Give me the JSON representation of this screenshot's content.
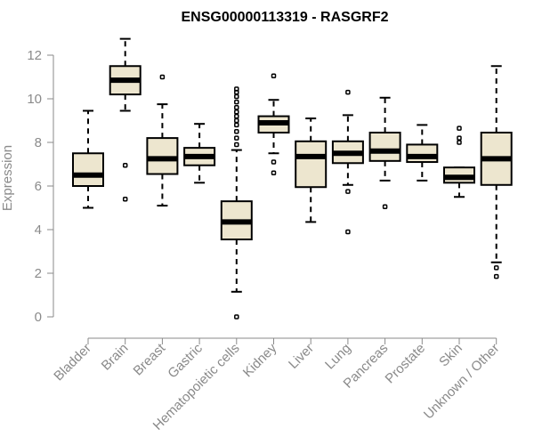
{
  "chart_data": {
    "type": "boxplot",
    "title": "ENSG00000113319 - RASGRF2",
    "xlabel": "",
    "ylabel": "Expression",
    "ylim": [
      0,
      12
    ],
    "yticks": [
      0,
      2,
      4,
      6,
      8,
      10,
      12
    ],
    "categories": [
      "Bladder",
      "Brain",
      "Breast",
      "Gastric",
      "Hematopoietic cells",
      "Kidney",
      "Liver",
      "Lung",
      "Pancreas",
      "Prostate",
      "Skin",
      "Unknown / Other"
    ],
    "boxes": [
      {
        "name": "Bladder",
        "whisker_low": 5.0,
        "q1": 6.0,
        "median": 6.5,
        "q3": 7.5,
        "whisker_high": 9.45,
        "outliers": []
      },
      {
        "name": "Brain",
        "whisker_low": 9.45,
        "q1": 10.2,
        "median": 10.85,
        "q3": 11.5,
        "whisker_high": 12.75,
        "outliers": [
          6.95,
          5.4
        ]
      },
      {
        "name": "Breast",
        "whisker_low": 5.1,
        "q1": 6.55,
        "median": 7.25,
        "q3": 8.2,
        "whisker_high": 9.75,
        "outliers": [
          11.0
        ]
      },
      {
        "name": "Gastric",
        "whisker_low": 6.15,
        "q1": 6.95,
        "median": 7.35,
        "q3": 7.75,
        "whisker_high": 8.85,
        "outliers": []
      },
      {
        "name": "Hematopoietic cells",
        "whisker_low": 1.15,
        "q1": 3.55,
        "median": 4.35,
        "q3": 5.3,
        "whisker_high": 7.65,
        "outliers": [
          0.0,
          7.9,
          8.2,
          8.5,
          8.8,
          9.0,
          9.2,
          9.4,
          9.6,
          9.85,
          10.1,
          10.3,
          10.45
        ]
      },
      {
        "name": "Kidney",
        "whisker_low": 7.5,
        "q1": 8.45,
        "median": 8.9,
        "q3": 9.2,
        "whisker_high": 9.95,
        "outliers": [
          11.05,
          7.1,
          6.6
        ]
      },
      {
        "name": "Liver",
        "whisker_low": 4.35,
        "q1": 5.95,
        "median": 7.35,
        "q3": 8.05,
        "whisker_high": 9.1,
        "outliers": []
      },
      {
        "name": "Lung",
        "whisker_low": 6.05,
        "q1": 7.05,
        "median": 7.5,
        "q3": 8.05,
        "whisker_high": 9.25,
        "outliers": [
          10.3,
          5.75,
          3.9
        ]
      },
      {
        "name": "Pancreas",
        "whisker_low": 6.25,
        "q1": 7.15,
        "median": 7.6,
        "q3": 8.45,
        "whisker_high": 10.05,
        "outliers": [
          5.05
        ]
      },
      {
        "name": "Prostate",
        "whisker_low": 6.25,
        "q1": 7.1,
        "median": 7.35,
        "q3": 7.9,
        "whisker_high": 8.8,
        "outliers": []
      },
      {
        "name": "Skin",
        "whisker_low": 5.5,
        "q1": 6.15,
        "median": 6.4,
        "q3": 6.85,
        "whisker_high": 6.85,
        "outliers": [
          8.65,
          8.2,
          8.0
        ]
      },
      {
        "name": "Unknown / Other",
        "whisker_low": 2.5,
        "q1": 6.05,
        "median": 7.25,
        "q3": 8.45,
        "whisker_high": 11.5,
        "outliers": [
          2.25,
          1.85
        ]
      }
    ],
    "grid": false,
    "colors": {
      "box_fill": "#ede6cf",
      "box_stroke": "#000000",
      "axis": "#8a8a8a"
    }
  }
}
